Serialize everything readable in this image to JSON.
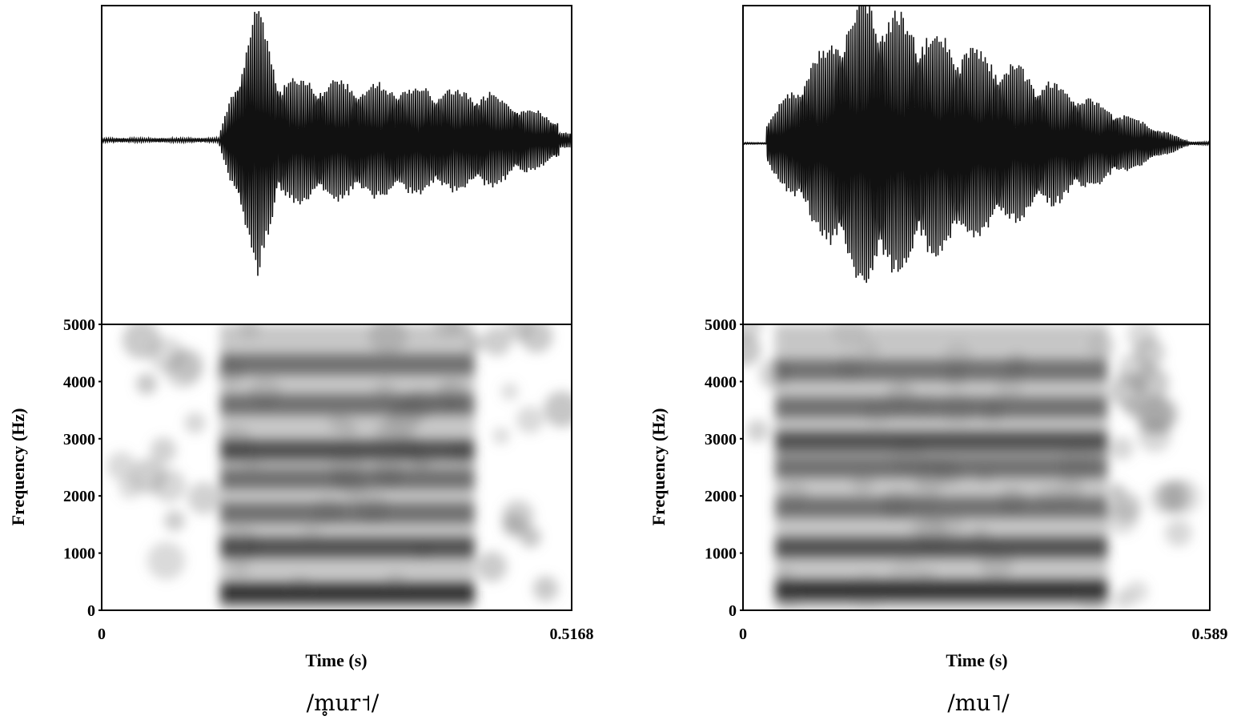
{
  "chart_data": [
    {
      "type": "heatmap",
      "subtype": "waveform-spectrogram",
      "caption": "/m̥ur˦/",
      "waveform": {
        "onset_s": 0.128,
        "peak_s": 0.17,
        "offset_s": 0.45,
        "tail_end_s": 0.5168,
        "relative_peak_amplitude": 0.95
      },
      "spectrogram": {
        "xlabel": "Time (s)",
        "ylabel": "Frequency (Hz)",
        "xlim": [
          0,
          0.5168
        ],
        "ylim": [
          0,
          5000
        ],
        "x_ticks": [
          "0",
          "0.5168"
        ],
        "y_ticks": [
          "0",
          "1000",
          "2000",
          "3000",
          "4000",
          "5000"
        ],
        "voicing_onset_s": 0.13,
        "voicing_offset_s": 0.41,
        "dark_bands_hz": [
          300,
          1100,
          1700,
          2300,
          2800,
          3600,
          4300
        ]
      }
    },
    {
      "type": "heatmap",
      "subtype": "waveform-spectrogram",
      "caption": "/mu˥/",
      "waveform": {
        "onset_s": 0.03,
        "peak_s": 0.15,
        "offset_s": 0.589,
        "tail_end_s": 0.589,
        "relative_peak_amplitude": 1.0
      },
      "spectrogram": {
        "xlabel": "Time (s)",
        "ylabel": "Frequency (Hz)",
        "xlim": [
          0,
          0.589
        ],
        "ylim": [
          0,
          5000
        ],
        "x_ticks": [
          "0",
          "0.589"
        ],
        "y_ticks": [
          "0",
          "1000",
          "2000",
          "3000",
          "4000",
          "5000"
        ],
        "voicing_onset_s": 0.04,
        "voicing_offset_s": 0.46,
        "dark_bands_hz": [
          350,
          1100,
          1800,
          2500,
          2950,
          3550,
          4200
        ]
      }
    }
  ]
}
